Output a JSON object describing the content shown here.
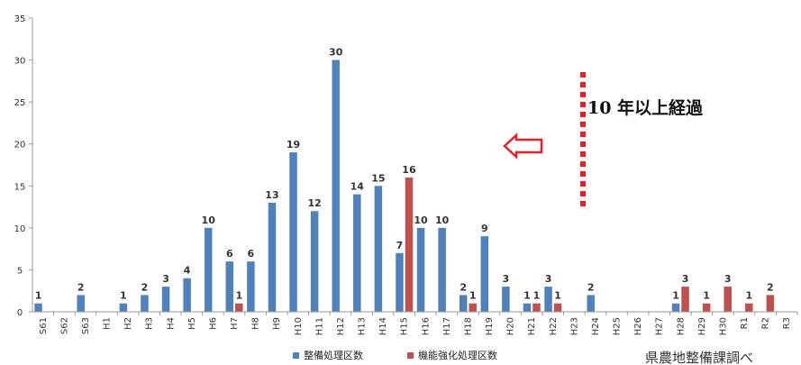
{
  "chart_data": {
    "type": "bar",
    "categories": [
      "S61",
      "S62",
      "S63",
      "H1",
      "H2",
      "H3",
      "H4",
      "H5",
      "H6",
      "H7",
      "H8",
      "H9",
      "H10",
      "H11",
      "H12",
      "H13",
      "H14",
      "H15",
      "H16",
      "H17",
      "H18",
      "H19",
      "H20",
      "H21",
      "H22",
      "H23",
      "H24",
      "H25",
      "H26",
      "H27",
      "H28",
      "H29",
      "H30",
      "R1",
      "R2",
      "R3"
    ],
    "series": [
      {
        "name": "整備処理区数",
        "color": "#4f81bd",
        "values": [
          1,
          0,
          2,
          0,
          1,
          2,
          3,
          4,
          10,
          6,
          6,
          13,
          19,
          12,
          30,
          14,
          15,
          7,
          10,
          10,
          2,
          9,
          3,
          1,
          3,
          0,
          2,
          0,
          0,
          0,
          1,
          0,
          0,
          0,
          0,
          0
        ]
      },
      {
        "name": "機能強化処理区数",
        "color": "#c0504d",
        "values": [
          0,
          0,
          0,
          0,
          0,
          0,
          0,
          0,
          0,
          1,
          0,
          0,
          0,
          0,
          0,
          0,
          0,
          16,
          0,
          0,
          1,
          0,
          0,
          1,
          1,
          0,
          0,
          0,
          0,
          0,
          3,
          1,
          3,
          1,
          2,
          0
        ]
      }
    ],
    "ylim": [
      0,
      35
    ],
    "yticks": [
      0,
      5,
      10,
      15,
      20,
      25,
      30,
      35
    ],
    "grid": false,
    "legend": "bottom",
    "annotation": "10 年以上経過",
    "source_note": "県農地整備課調べ"
  }
}
